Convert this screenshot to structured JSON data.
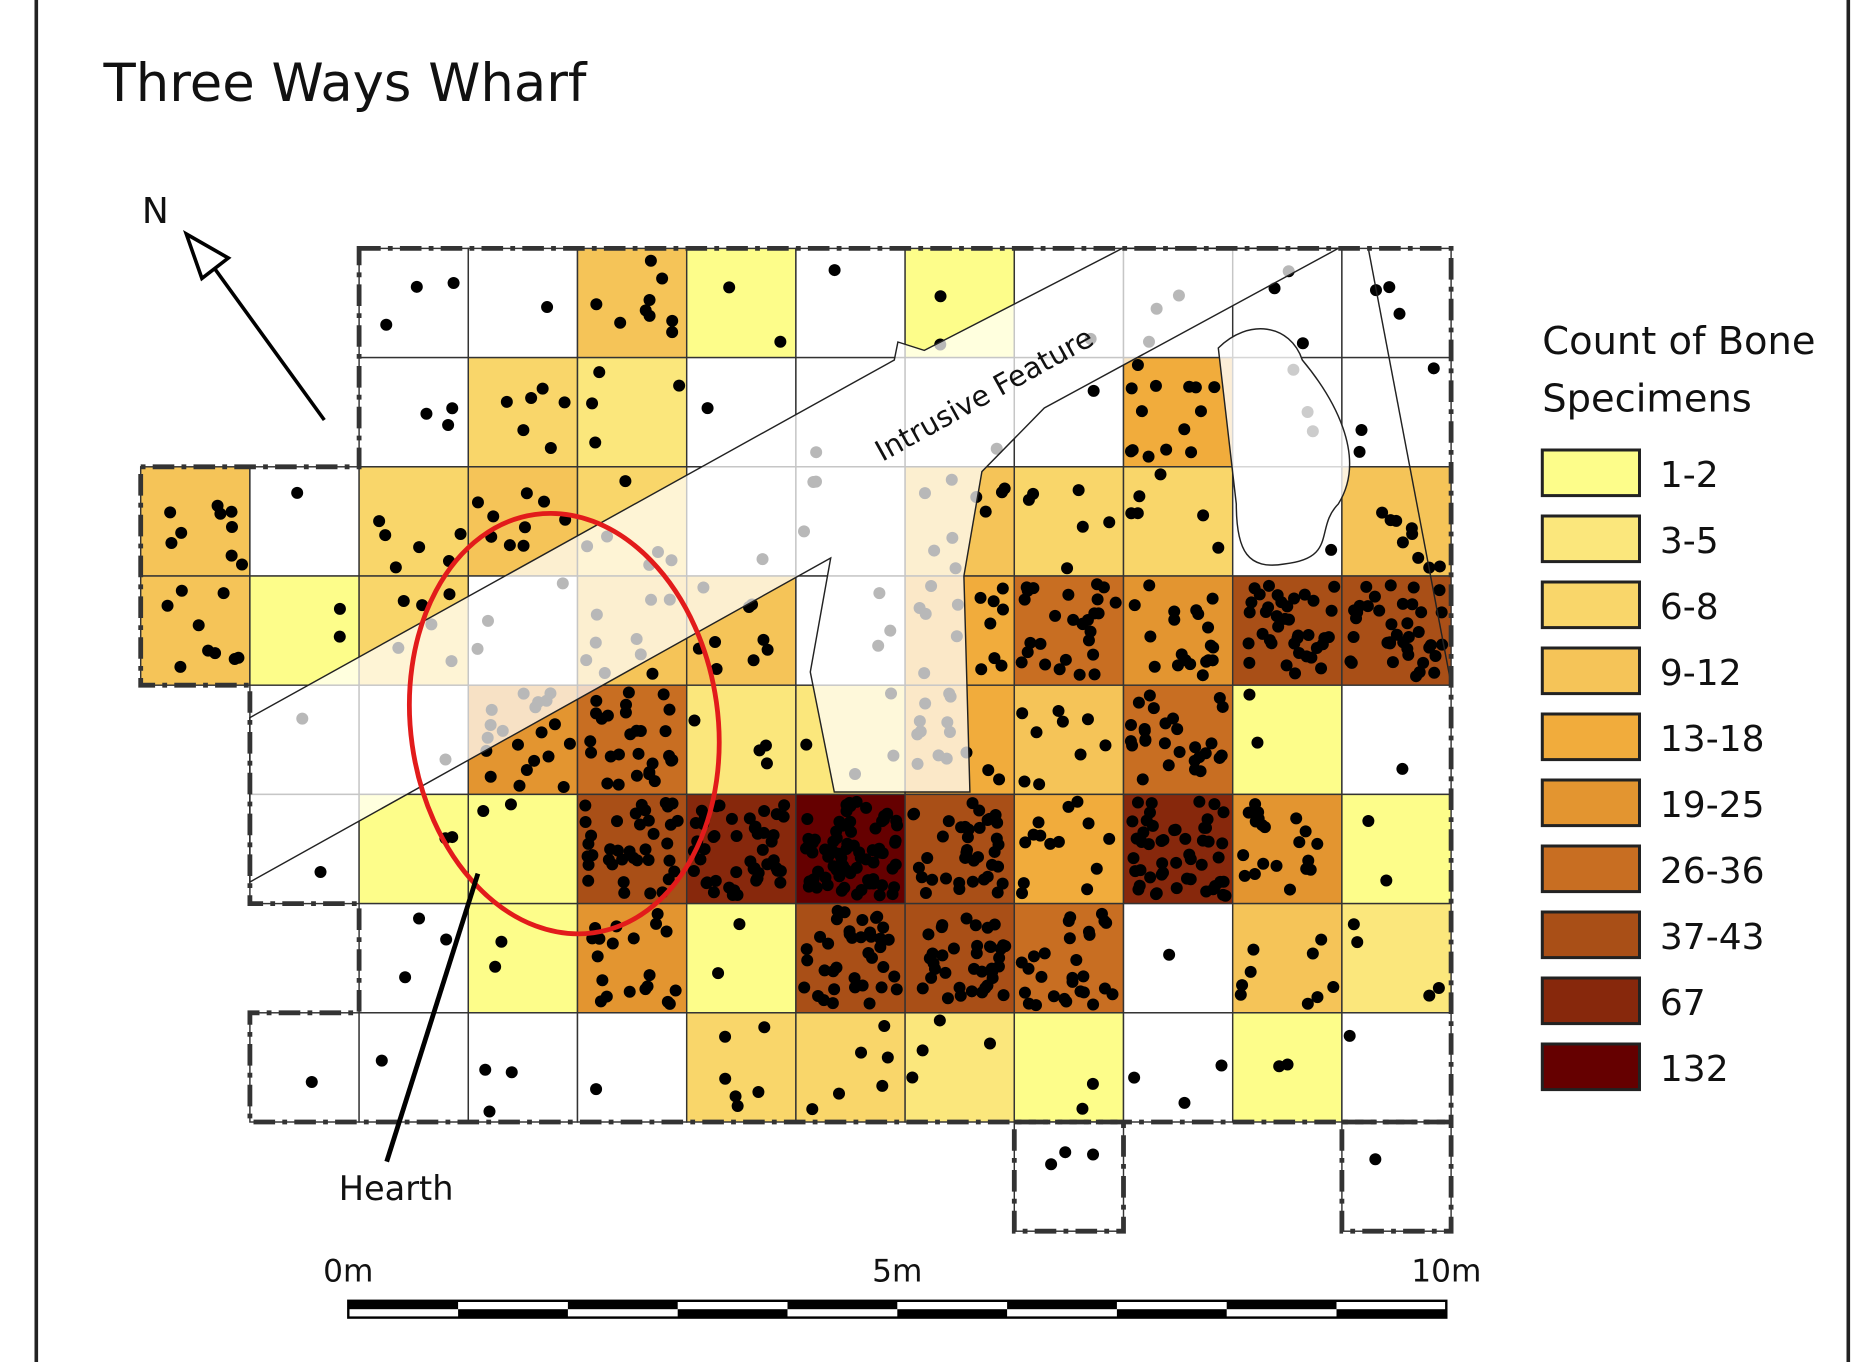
{
  "title": "Three Ways Wharf",
  "north_label": "N",
  "feature_label": "Intrusive Feature",
  "hearth_label": "Hearth",
  "legend": {
    "title_lines": [
      "Count of Bone",
      "Specimens"
    ],
    "items": [
      {
        "label": "1-2",
        "color": "#fdfd8a"
      },
      {
        "label": "3-5",
        "color": "#fbe77c"
      },
      {
        "label": "6-8",
        "color": "#f9d66a"
      },
      {
        "label": "9-12",
        "color": "#f5c458"
      },
      {
        "label": "13-18",
        "color": "#f1ac3c"
      },
      {
        "label": "19-25",
        "color": "#e39530"
      },
      {
        "label": "26-36",
        "color": "#c86e22"
      },
      {
        "label": "37-43",
        "color": "#a94f17"
      },
      {
        "label": "67",
        "color": "#87280c"
      },
      {
        "label": "132",
        "color": "#650000"
      }
    ]
  },
  "scale_labels": [
    "0m",
    "5m",
    "10m"
  ]
}
